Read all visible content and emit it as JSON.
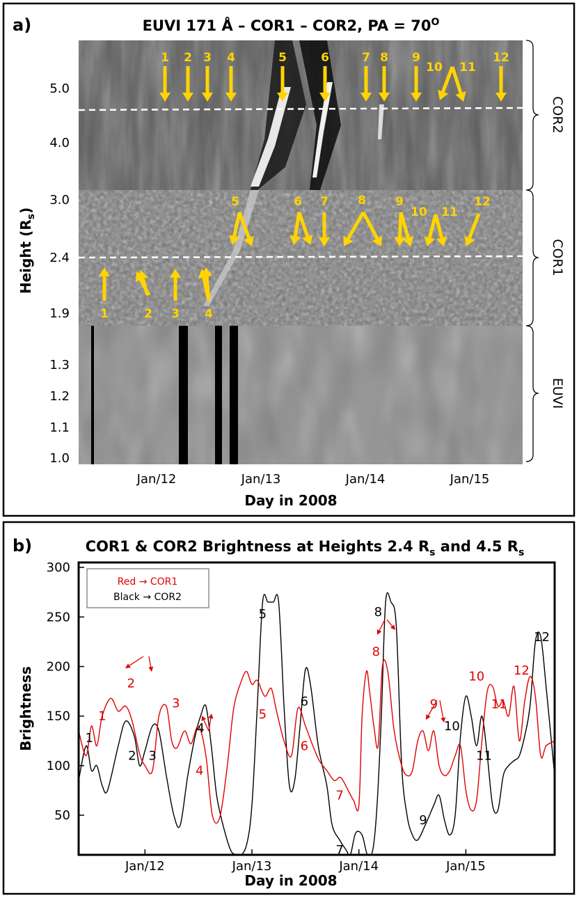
{
  "chart_data": [
    {
      "panel": "a)",
      "type": "heatmap",
      "title": "EUVI 171 Å – COR1 – COR2, PA = 70",
      "title_superscript": "O",
      "xlabel": "Day in 2008",
      "ylabel": "Height (R",
      "ylabel_sub": "s",
      "ylabel_end": ")",
      "x_ticks": [
        "Jan/12",
        "Jan/13",
        "Jan/14",
        "Jan/15"
      ],
      "instruments": [
        {
          "name": "COR2",
          "ticks": [
            "5.0",
            "4.0"
          ],
          "dashed_height": "4.5"
        },
        {
          "name": "COR1",
          "ticks": [
            "3.0",
            "2.4",
            "1.9"
          ],
          "dashed_height": "2.4"
        },
        {
          "name": "EUVI",
          "ticks": [
            "1.3",
            "1.2",
            "1.1",
            "1.0"
          ]
        }
      ],
      "cor2_arrows": [
        "1",
        "2",
        "3",
        "4",
        "5",
        "6",
        "7",
        "8",
        "9",
        "10",
        "11",
        "12"
      ],
      "cor1_upper_arrows": [
        "5",
        "6",
        "7",
        "8",
        "9",
        "10",
        "11",
        "12"
      ],
      "cor1_lower_arrows": [
        "1",
        "2",
        "3",
        "4"
      ]
    },
    {
      "panel": "b)",
      "type": "line",
      "title": "COR1 & COR2 Brightness at Heights 2.4 R",
      "title_sub1": "s",
      "title_mid": " and 4.5 R",
      "title_sub2": "s",
      "xlabel": "Day in 2008",
      "ylabel": "Brightness",
      "xlim": [
        11.38,
        15.83
      ],
      "ylim": [
        10,
        305
      ],
      "y_ticks": [
        "300",
        "250",
        "200",
        "150",
        "100",
        "50"
      ],
      "x_ticks": [
        "Jan/12",
        "Jan/13",
        "Jan/14",
        "Jan/15"
      ],
      "legend": {
        "red": "Red → COR1",
        "black": "Black → COR2",
        "placement": "top-left"
      },
      "series": [
        {
          "name": "COR1",
          "color": "#e00000",
          "x": [
            11.38,
            11.45,
            11.5,
            11.55,
            11.6,
            11.68,
            11.75,
            11.82,
            11.88,
            11.95,
            12.0,
            12.07,
            12.13,
            12.2,
            12.25,
            12.3,
            12.37,
            12.43,
            12.5,
            12.57,
            12.63,
            12.7,
            12.77,
            12.83,
            12.9,
            12.95,
            13.0,
            13.05,
            13.12,
            13.18,
            13.23,
            13.3,
            13.37,
            13.43,
            13.5,
            13.57,
            13.63,
            13.7,
            13.77,
            13.83,
            13.9,
            13.95,
            14.0,
            14.03,
            14.07,
            14.1,
            14.14,
            14.18,
            14.22,
            14.27,
            14.33,
            14.4,
            14.45,
            14.5,
            14.55,
            14.6,
            14.65,
            14.7,
            14.75,
            14.8,
            14.85,
            14.9,
            14.95,
            15.0,
            15.05,
            15.1,
            15.15,
            15.2,
            15.25,
            15.3,
            15.35,
            15.4,
            15.45,
            15.5,
            15.55,
            15.6,
            15.65,
            15.7,
            15.75,
            15.83
          ],
          "values": [
            135,
            110,
            140,
            120,
            150,
            168,
            155,
            160,
            145,
            112,
            100,
            95,
            150,
            160,
            125,
            118,
            135,
            122,
            140,
            110,
            50,
            48,
            100,
            158,
            185,
            195,
            182,
            186,
            170,
            178,
            155,
            125,
            110,
            158,
            140,
            120,
            105,
            95,
            85,
            88,
            75,
            65,
            60,
            150,
            195,
            175,
            140,
            120,
            200,
            195,
            135,
            100,
            90,
            95,
            125,
            135,
            115,
            135,
            100,
            90,
            95,
            110,
            120,
            75,
            55,
            65,
            125,
            175,
            180,
            160,
            165,
            150,
            180,
            125,
            165,
            190,
            170,
            110,
            120,
            125
          ]
        },
        {
          "name": "COR2",
          "color": "#000000",
          "x": [
            11.38,
            11.45,
            11.5,
            11.55,
            11.6,
            11.65,
            11.75,
            11.82,
            11.9,
            11.95,
            12.0,
            12.07,
            12.13,
            12.2,
            12.27,
            12.33,
            12.4,
            12.47,
            12.52,
            12.57,
            12.62,
            12.67,
            12.73,
            12.8,
            12.85,
            12.88,
            12.95,
            13.0,
            13.05,
            13.1,
            13.15,
            13.2,
            13.25,
            13.3,
            13.35,
            13.4,
            13.45,
            13.5,
            13.55,
            13.62,
            13.7,
            13.75,
            13.82,
            13.88,
            13.92,
            13.97,
            14.03,
            14.08,
            14.13,
            14.17,
            14.21,
            14.25,
            14.3,
            14.35,
            14.4,
            14.45,
            14.5,
            14.55,
            14.62,
            14.7,
            14.75,
            14.8,
            14.85,
            14.9,
            14.95,
            15.0,
            15.05,
            15.1,
            15.15,
            15.2,
            15.25,
            15.3,
            15.35,
            15.4,
            15.45,
            15.5,
            15.55,
            15.6,
            15.65,
            15.7,
            15.75,
            15.83
          ],
          "values": [
            85,
            120,
            95,
            100,
            80,
            75,
            120,
            145,
            130,
            100,
            115,
            140,
            135,
            90,
            50,
            40,
            90,
            130,
            150,
            160,
            120,
            70,
            40,
            15,
            10,
            8,
            20,
            60,
            160,
            265,
            265,
            265,
            265,
            160,
            80,
            85,
            140,
            197,
            180,
            120,
            80,
            40,
            25,
            15,
            10,
            32,
            30,
            10,
            15,
            60,
            150,
            265,
            265,
            240,
            100,
            50,
            30,
            25,
            40,
            60,
            70,
            45,
            30,
            50,
            130,
            170,
            150,
            120,
            150,
            110,
            60,
            55,
            90,
            100,
            105,
            110,
            130,
            160,
            225,
            230,
            180,
            90
          ]
        }
      ],
      "annotations": [
        {
          "text": "1",
          "x": 11.48,
          "y": 128,
          "color": "black"
        },
        {
          "text": "1",
          "x": 11.6,
          "y": 150,
          "color": "red"
        },
        {
          "text": "2",
          "x": 11.87,
          "y": 183,
          "color": "red"
        },
        {
          "text": "2",
          "x": 11.88,
          "y": 110,
          "color": "black"
        },
        {
          "text": "3",
          "x": 12.07,
          "y": 110,
          "color": "black"
        },
        {
          "text": "3",
          "x": 12.29,
          "y": 163,
          "color": "red"
        },
        {
          "text": "4",
          "x": 12.52,
          "y": 138,
          "color": "black"
        },
        {
          "text": "4",
          "x": 12.51,
          "y": 95,
          "color": "red"
        },
        {
          "text": "5",
          "x": 13.1,
          "y": 253,
          "color": "black"
        },
        {
          "text": "5",
          "x": 13.1,
          "y": 152,
          "color": "red"
        },
        {
          "text": "6",
          "x": 13.49,
          "y": 165,
          "color": "black"
        },
        {
          "text": "6",
          "x": 13.49,
          "y": 120,
          "color": "red"
        },
        {
          "text": "7",
          "x": 13.82,
          "y": 70,
          "color": "red"
        },
        {
          "text": "7",
          "x": 13.82,
          "y": 15,
          "color": "black"
        },
        {
          "text": "8",
          "x": 14.18,
          "y": 255,
          "color": "black"
        },
        {
          "text": "8",
          "x": 14.16,
          "y": 215,
          "color": "red"
        },
        {
          "text": "9",
          "x": 14.7,
          "y": 162,
          "color": "red"
        },
        {
          "text": "9",
          "x": 14.6,
          "y": 45,
          "color": "black"
        },
        {
          "text": "10",
          "x": 14.87,
          "y": 140,
          "color": "black"
        },
        {
          "text": "10",
          "x": 15.1,
          "y": 190,
          "color": "red"
        },
        {
          "text": "11",
          "x": 15.17,
          "y": 110,
          "color": "black"
        },
        {
          "text": "11",
          "x": 15.31,
          "y": 162,
          "color": "red"
        },
        {
          "text": "12",
          "x": 15.52,
          "y": 196,
          "color": "red"
        },
        {
          "text": "12",
          "x": 15.71,
          "y": 230,
          "color": "black"
        }
      ]
    }
  ]
}
